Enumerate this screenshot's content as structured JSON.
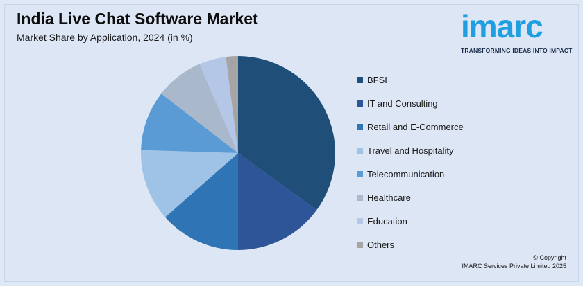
{
  "header": {
    "title": "India Live Chat Software Market",
    "subtitle": "Market Share by Application, 2024 (in %)"
  },
  "logo": {
    "word": "imarc",
    "tagline": "TRANSFORMING IDEAS INTO IMPACT",
    "color": "#1f9fe0"
  },
  "footer": {
    "line1": "© Copyright",
    "line2": "IMARC Services Private Limited 2025"
  },
  "chart_data": {
    "type": "pie",
    "title": "India Live Chat Software Market",
    "subtitle": "Market Share by Application, 2024 (in %)",
    "legend_position": "right",
    "categories": [
      "BFSI",
      "IT and Consulting",
      "Retail and E-Commerce",
      "Travel and Hospitality",
      "Telecommunication",
      "Healthcare",
      "Education",
      "Others"
    ],
    "values": [
      35,
      15,
      13.5,
      12,
      10,
      8,
      4.5,
      2
    ],
    "colors": [
      "#1f4e79",
      "#2e5597",
      "#2f75b5",
      "#9fc3e7",
      "#5b9bd5",
      "#a9b8cb",
      "#b4c7e7",
      "#a5a5a5"
    ]
  }
}
